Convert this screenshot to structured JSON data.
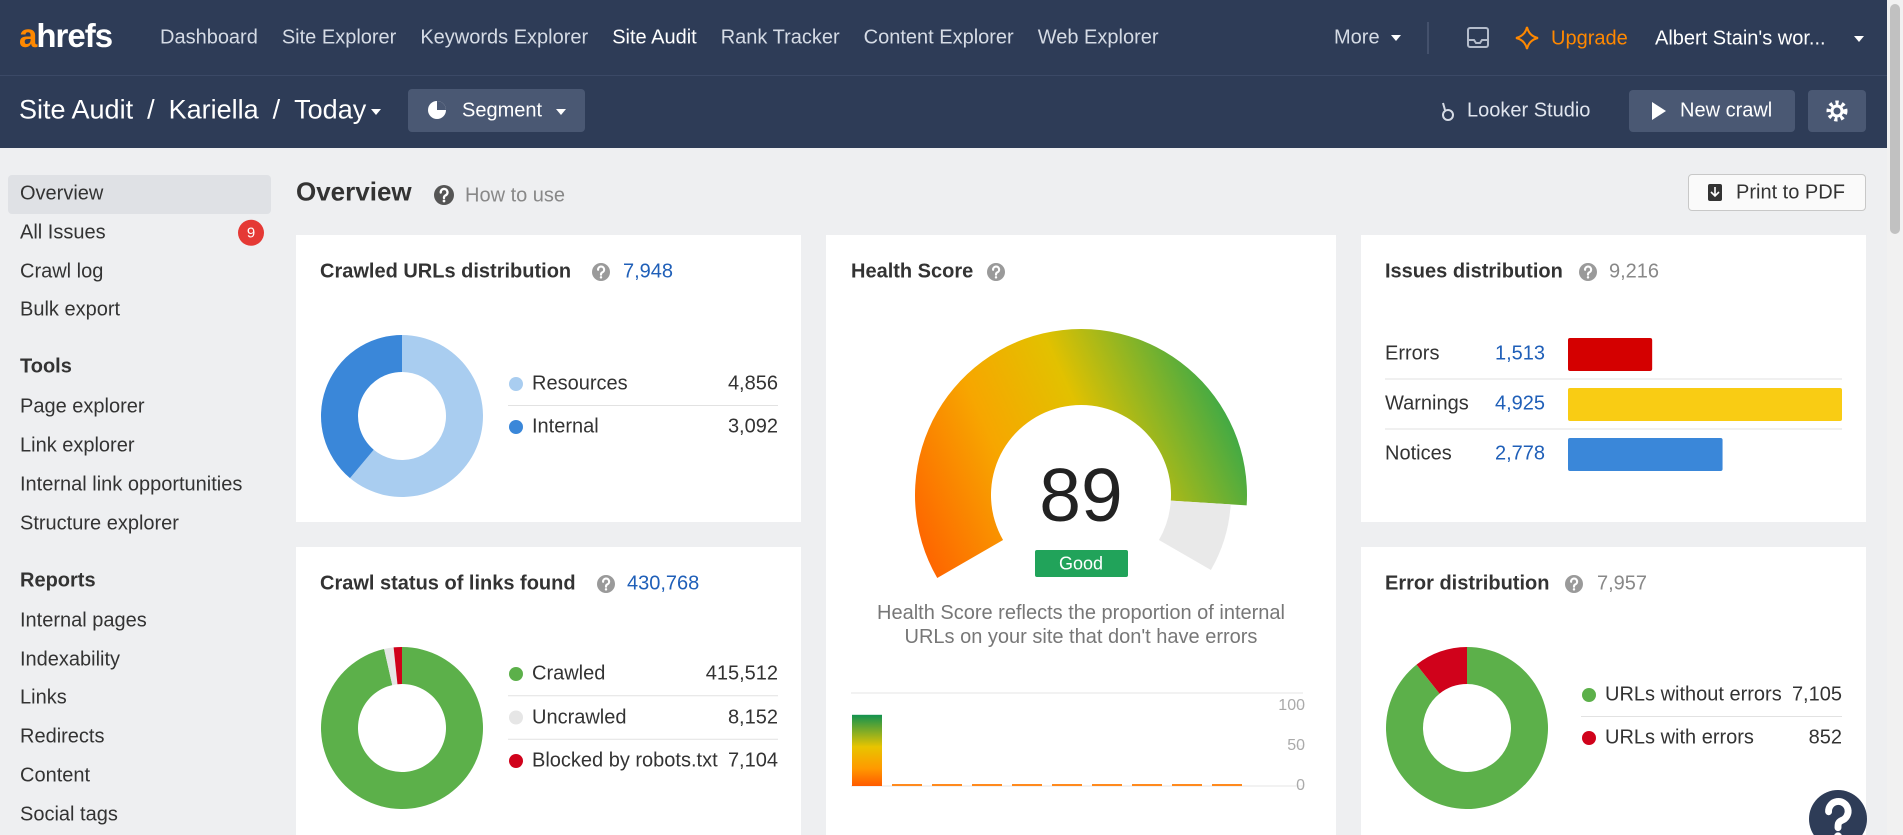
{
  "nav": {
    "logo": "ahrefs",
    "links": [
      {
        "label": "Dashboard"
      },
      {
        "label": "Site Explorer"
      },
      {
        "label": "Keywords Explorer"
      },
      {
        "label": "Site Audit",
        "active": true
      },
      {
        "label": "Rank Tracker"
      },
      {
        "label": "Content Explorer"
      },
      {
        "label": "Web Explorer"
      }
    ],
    "more": "More",
    "upgrade": "Upgrade",
    "account": "Albert Stain's wor..."
  },
  "subheader": {
    "breadcrumb": [
      "Site Audit",
      "Kariella",
      "Today"
    ],
    "separator": "/",
    "segment": "Segment",
    "looker": "Looker Studio",
    "new_crawl": "New crawl"
  },
  "sidebar": {
    "items": [
      {
        "label": "Overview",
        "active": true
      },
      {
        "label": "All Issues",
        "badge": 9
      },
      {
        "label": "Crawl log"
      },
      {
        "label": "Bulk export"
      }
    ],
    "sections": [
      {
        "heading": "Tools",
        "items": [
          "Page explorer",
          "Link explorer",
          "Internal link opportunities",
          "Structure explorer"
        ]
      },
      {
        "heading": "Reports",
        "items": [
          "Internal pages",
          "Indexability",
          "Links",
          "Redirects",
          "Content",
          "Social tags"
        ]
      }
    ]
  },
  "page": {
    "title": "Overview",
    "help": "How to use",
    "print": "Print to PDF"
  },
  "crawled": {
    "title": "Crawled URLs distribution",
    "total": "7,948",
    "series": [
      {
        "name": "Resources",
        "value": 4856,
        "value_label": "4,856",
        "color": "#a9cdf0"
      },
      {
        "name": "Internal",
        "value": 3092,
        "value_label": "3,092",
        "color": "#3a87d9"
      }
    ]
  },
  "health": {
    "title": "Health Score",
    "score": 89,
    "status": "Good",
    "description": "Health Score reflects the proportion of internal URLs on your site that don't have errors",
    "ylim": [
      0,
      100
    ],
    "yticks": [
      0,
      50,
      100
    ],
    "history": [
      89,
      0,
      0,
      0,
      0,
      0,
      0,
      0,
      0,
      0
    ]
  },
  "issues": {
    "title": "Issues distribution",
    "total": "9,216",
    "series": [
      {
        "name": "Errors",
        "value": 1513,
        "value_label": "1,513",
        "color": "#d40000"
      },
      {
        "name": "Warnings",
        "value": 4925,
        "value_label": "4,925",
        "color": "#f9cc14"
      },
      {
        "name": "Notices",
        "value": 2778,
        "value_label": "2,778",
        "color": "#3a87d9"
      }
    ]
  },
  "crawl_status": {
    "title": "Crawl status of links found",
    "total": "430,768",
    "series": [
      {
        "name": "Crawled",
        "value": 415512,
        "value_label": "415,512",
        "color": "#5cb04a"
      },
      {
        "name": "Uncrawled",
        "value": 8152,
        "value_label": "8,152",
        "color": "#e6e6e6"
      },
      {
        "name": "Blocked by robots.txt",
        "value": 7104,
        "value_label": "7,104",
        "color": "#d0021b"
      }
    ]
  },
  "errors": {
    "title": "Error distribution",
    "total": "7,957",
    "series": [
      {
        "name": "URLs without errors",
        "value": 7105,
        "value_label": "7,105",
        "color": "#5cb04a"
      },
      {
        "name": "URLs with errors",
        "value": 852,
        "value_label": "852",
        "color": "#d0021b"
      }
    ]
  }
}
